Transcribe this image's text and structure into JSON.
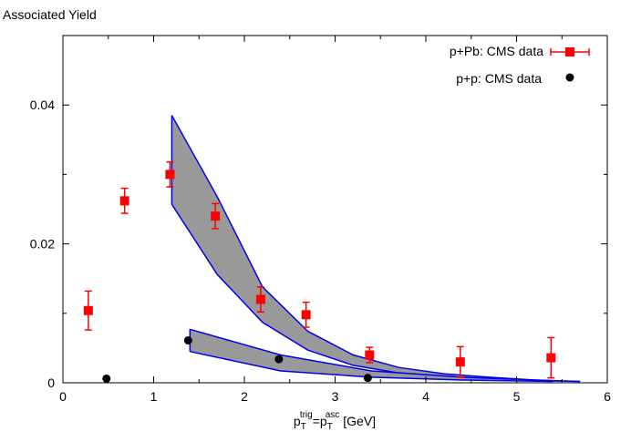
{
  "chart_data": {
    "type": "scatter",
    "title": "Associated Yield",
    "xlabel": {
      "base1": "p",
      "sub1": "T",
      "sup1": "trig",
      "eq": "=",
      "base2": "p",
      "sub2": "T",
      "sup2": "asc",
      "unit": "[GeV]"
    },
    "ylabel": "",
    "xlim": [
      0,
      6
    ],
    "ylim": [
      0,
      0.05
    ],
    "xticks": [
      0,
      1,
      2,
      3,
      4,
      5,
      6
    ],
    "xtick_labels": [
      "0",
      "1",
      "2",
      "3",
      "4",
      "5",
      "6"
    ],
    "yticks": [
      0,
      0.02,
      0.04
    ],
    "ytick_labels": [
      "0",
      "0.02",
      "0.04"
    ],
    "legend_position": "top-right",
    "colors": {
      "ppb": "#ff0000",
      "pp": "#000000",
      "band_fill": "#999999",
      "band_line": "#0000ee"
    },
    "series": [
      {
        "name": "p+Pb: CMS data",
        "marker": "square",
        "points": [
          {
            "x": 0.28,
            "y": 0.0104,
            "err": 0.0028
          },
          {
            "x": 0.68,
            "y": 0.0262,
            "err": 0.0018
          },
          {
            "x": 1.18,
            "y": 0.03,
            "err": 0.0018
          },
          {
            "x": 1.68,
            "y": 0.024,
            "err": 0.0018
          },
          {
            "x": 2.18,
            "y": 0.012,
            "err": 0.0018
          },
          {
            "x": 2.68,
            "y": 0.0098,
            "err": 0.0018
          },
          {
            "x": 3.38,
            "y": 0.004,
            "err": 0.0011
          },
          {
            "x": 4.38,
            "y": 0.003,
            "err": 0.0022
          },
          {
            "x": 5.38,
            "y": 0.0036,
            "err": 0.0029
          }
        ]
      },
      {
        "name": "p+p:  CMS data",
        "marker": "circle",
        "points": [
          {
            "x": 0.48,
            "y": 0.0006
          },
          {
            "x": 1.38,
            "y": 0.0061
          },
          {
            "x": 2.38,
            "y": 0.0034
          },
          {
            "x": 3.36,
            "y": 0.0007
          }
        ]
      }
    ],
    "bands": [
      {
        "x": [
          1.2,
          1.7,
          2.2,
          2.7,
          3.2,
          3.7,
          4.2,
          4.7,
          5.2,
          5.7
        ],
        "upper": [
          0.0385,
          0.0268,
          0.0138,
          0.0074,
          0.004,
          0.0022,
          0.0013,
          0.0008,
          0.0004,
          0.0002
        ],
        "lower": [
          0.0257,
          0.0156,
          0.0087,
          0.0047,
          0.0025,
          0.0014,
          0.0008,
          0.0005,
          0.0003,
          0.0002
        ]
      },
      {
        "x": [
          1.4,
          2.4,
          3.4,
          4.4,
          5.4
        ],
        "upper": [
          0.0077,
          0.004,
          0.0017,
          0.0008,
          0.0003
        ],
        "lower": [
          0.0045,
          0.0017,
          0.0008,
          0.0004,
          0.0002
        ]
      }
    ]
  }
}
